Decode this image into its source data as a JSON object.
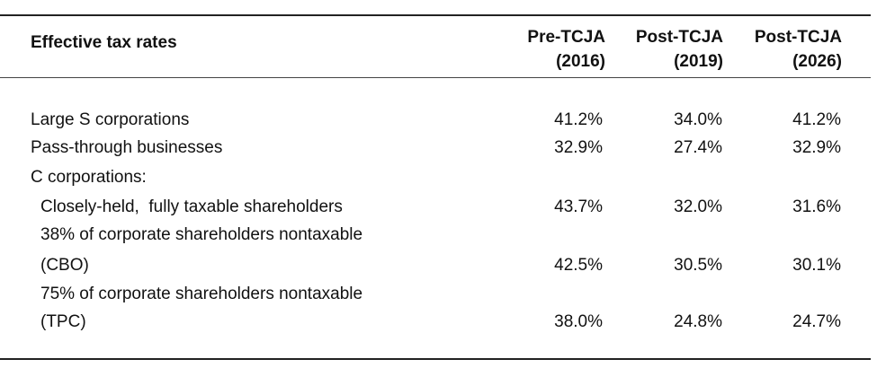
{
  "table": {
    "header": {
      "label": "Effective tax rates",
      "columns": [
        {
          "line1": "Pre-TCJA",
          "line2": "(2016)"
        },
        {
          "line1": "Post-TCJA",
          "line2": "(2019)"
        },
        {
          "line1": "Post-TCJA",
          "line2": "(2026)"
        }
      ]
    },
    "rows": [
      {
        "label": "Large S corporations",
        "values": [
          "41.2%",
          "34.0%",
          "41.2%"
        ]
      },
      {
        "label": "Pass-through businesses",
        "values": [
          "32.9%",
          "27.4%",
          "32.9%"
        ]
      },
      {
        "label": "C corporations:"
      },
      {
        "label": "Closely-held,  fully taxable shareholders",
        "values": [
          "43.7%",
          "32.0%",
          "31.6%"
        ]
      },
      {
        "label": "38% of corporate shareholders nontaxable"
      },
      {
        "label": "(CBO)",
        "values": [
          "42.5%",
          "30.5%",
          "30.1%"
        ]
      },
      {
        "label": "75% of corporate shareholders nontaxable"
      },
      {
        "label": "(TPC)",
        "values": [
          "38.0%",
          "24.8%",
          "24.7%"
        ]
      }
    ]
  }
}
